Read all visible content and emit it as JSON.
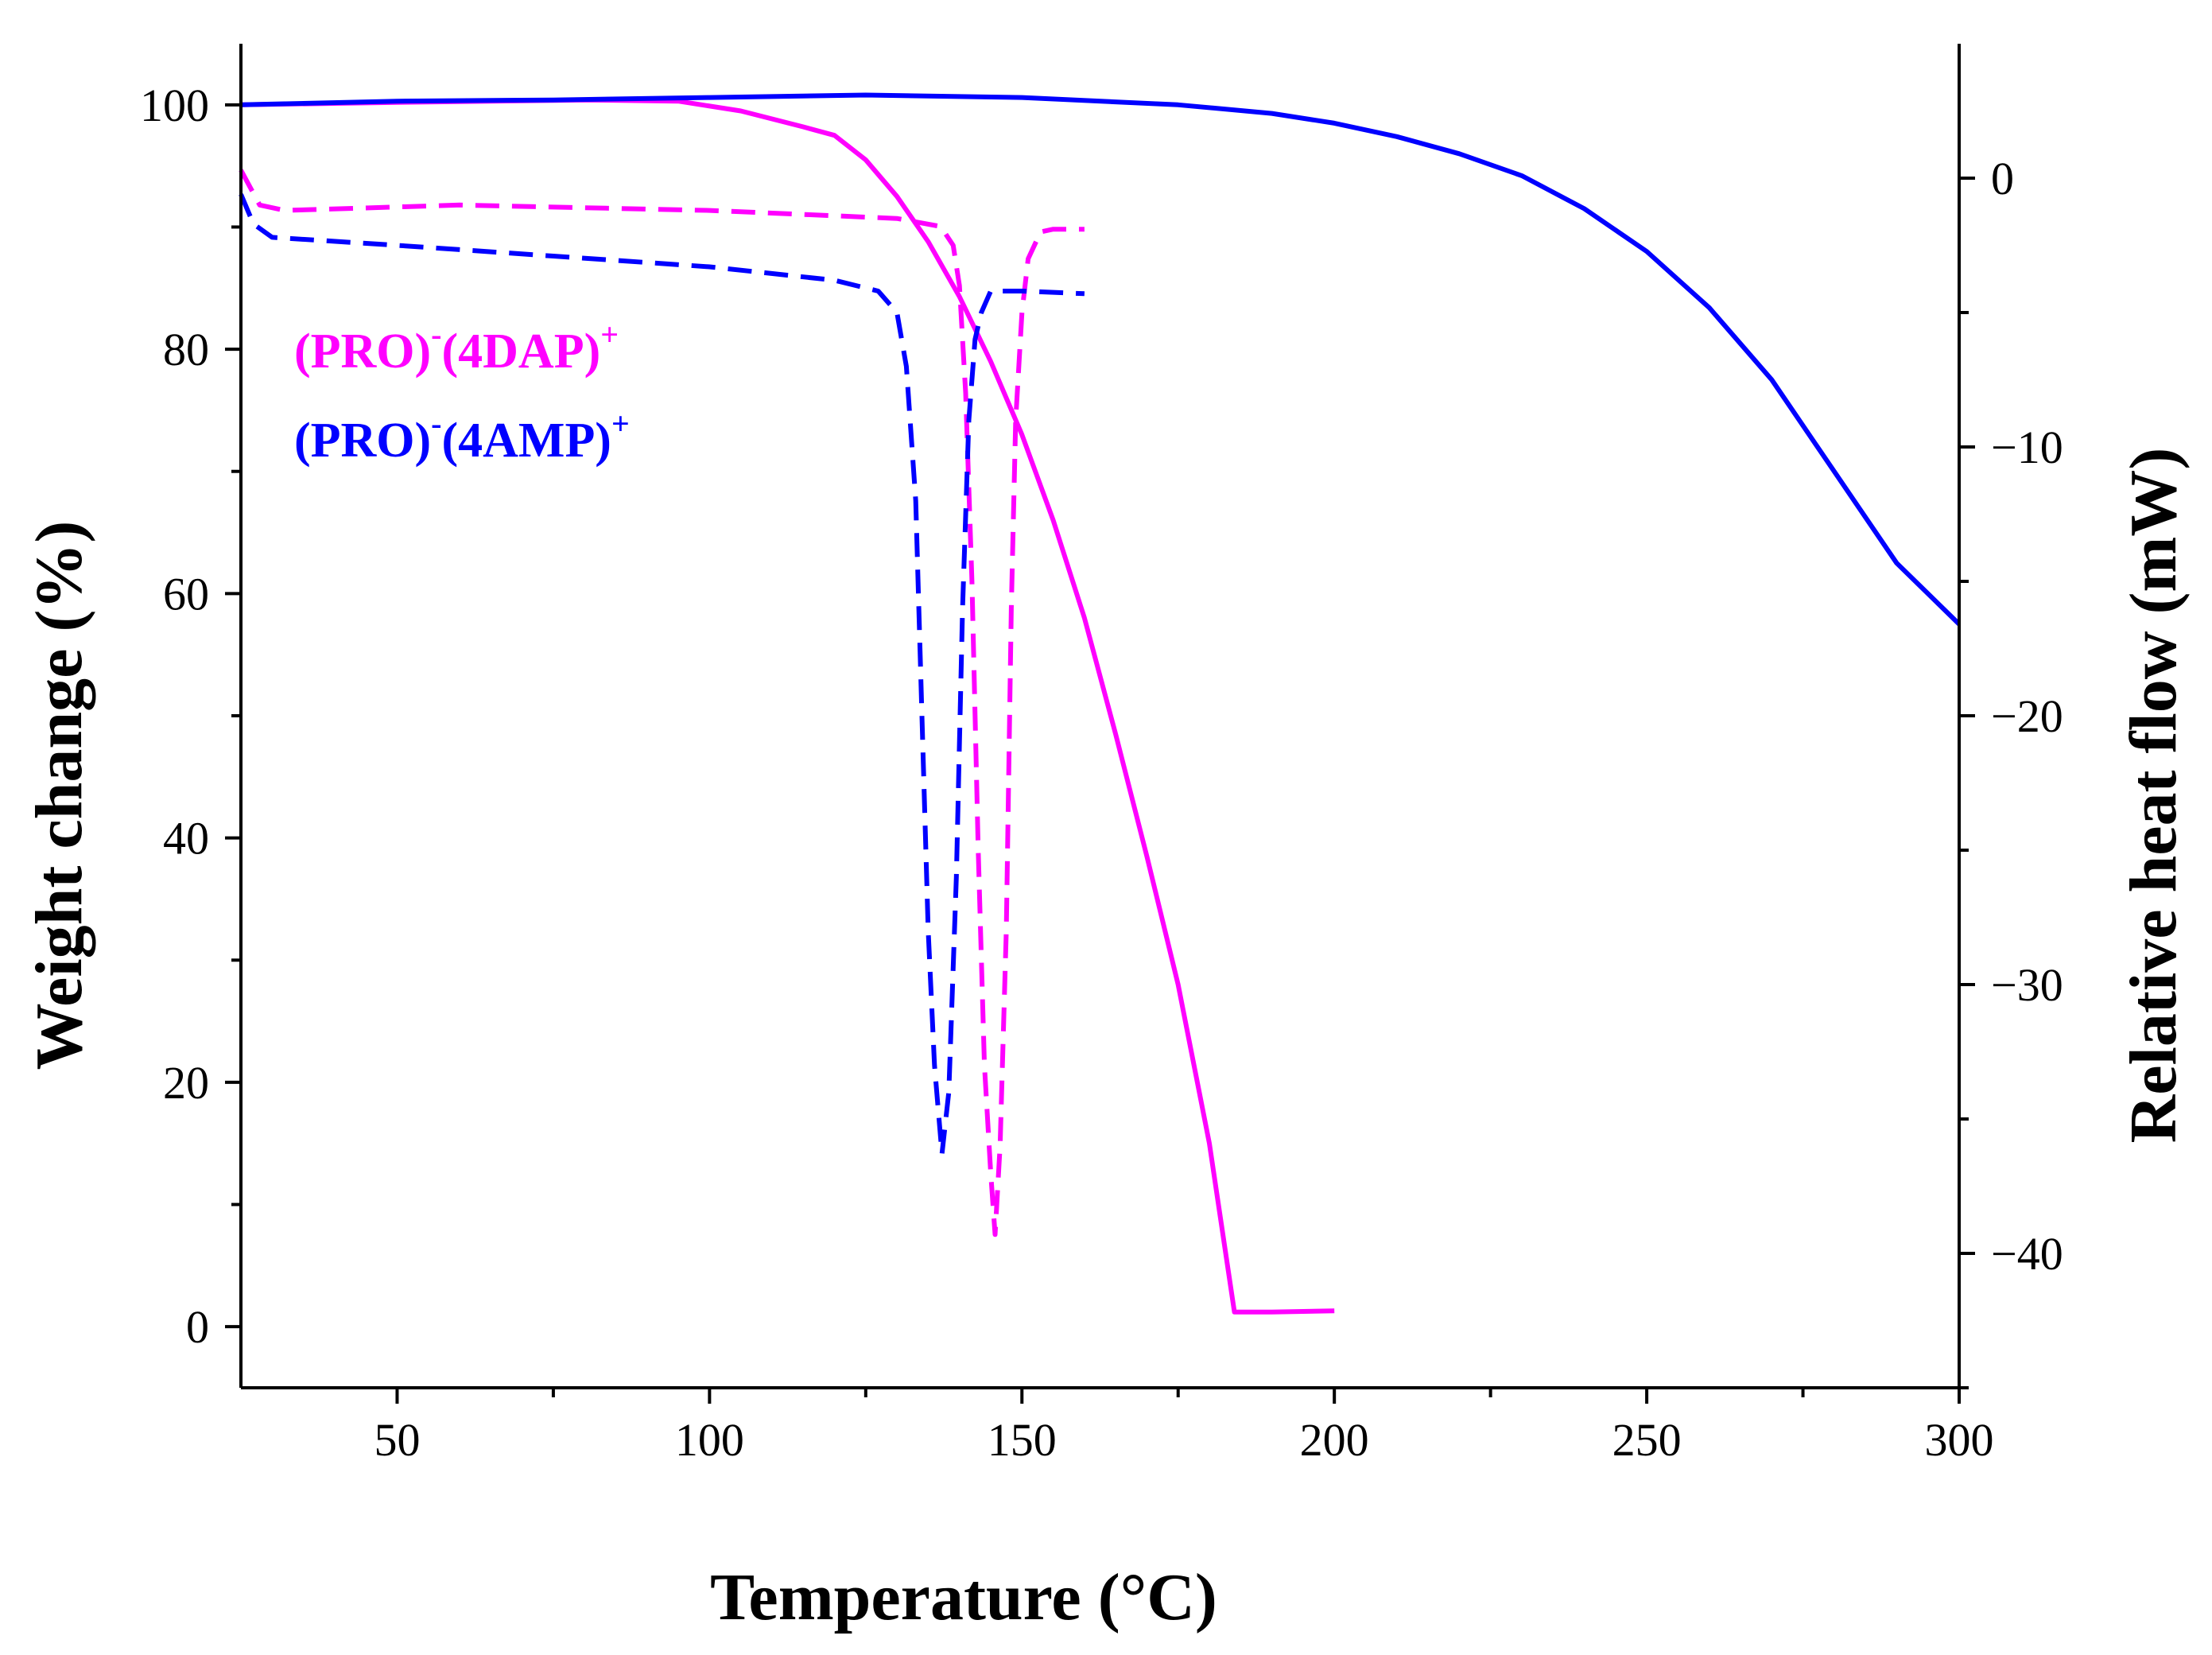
{
  "chart_data": {
    "type": "line",
    "xlabel": "Temperature (°C)",
    "ylabel_left": "Weight change (%)",
    "ylabel_right": "Relative heat flow (mW)",
    "xlim": [
      25,
      300
    ],
    "ylim_left": [
      -5,
      105
    ],
    "ylim_right": [
      -45,
      5
    ],
    "x_ticks": [
      50,
      100,
      150,
      200,
      250,
      300
    ],
    "y_left_ticks": [
      0,
      20,
      40,
      60,
      80,
      100
    ],
    "y_right_ticks": [
      0,
      -10,
      -20,
      -30,
      -40
    ],
    "grid": false,
    "legend": {
      "placement": "left-upper",
      "entries": [
        {
          "base": "(PRO)",
          "sup1": "-",
          "mid": "(4DAP)",
          "sup2": "+",
          "color": "#ff00ff"
        },
        {
          "base": "(PRO)",
          "sup1": "-",
          "mid": "(4AMP)",
          "sup2": "+",
          "color": "#0000ff"
        }
      ]
    },
    "series": [
      {
        "color": "#ff00ff",
        "style": "solid",
        "axis": "left",
        "points": [
          [
            25,
            100
          ],
          [
            50,
            100.2
          ],
          [
            80,
            100.4
          ],
          [
            95,
            100.3
          ],
          [
            105,
            99.5
          ],
          [
            115,
            98.2
          ],
          [
            120,
            97.5
          ],
          [
            125,
            95.5
          ],
          [
            130,
            92.5
          ],
          [
            135,
            88.8
          ],
          [
            140,
            84.3
          ],
          [
            145,
            79
          ],
          [
            150,
            73
          ],
          [
            155,
            66
          ],
          [
            160,
            58
          ],
          [
            165,
            48.5
          ],
          [
            170,
            38.5
          ],
          [
            175,
            28
          ],
          [
            180,
            15
          ],
          [
            184,
            1.2
          ],
          [
            190,
            1.2
          ],
          [
            200,
            1.3
          ]
        ]
      },
      {
        "color": "#0000ff",
        "style": "solid",
        "axis": "left",
        "points": [
          [
            25,
            100
          ],
          [
            50,
            100.3
          ],
          [
            75,
            100.4
          ],
          [
            100,
            100.6
          ],
          [
            125,
            100.8
          ],
          [
            150,
            100.6
          ],
          [
            175,
            100
          ],
          [
            190,
            99.3
          ],
          [
            200,
            98.5
          ],
          [
            210,
            97.4
          ],
          [
            220,
            96
          ],
          [
            230,
            94.2
          ],
          [
            240,
            91.5
          ],
          [
            250,
            88
          ],
          [
            260,
            83.4
          ],
          [
            270,
            77.5
          ],
          [
            280,
            70
          ],
          [
            290,
            62.5
          ],
          [
            300,
            57.5
          ]
        ]
      },
      {
        "color": "#ff00ff",
        "style": "dashed",
        "axis": "right",
        "points": [
          [
            25,
            0.3
          ],
          [
            28,
            -1
          ],
          [
            32,
            -1.2
          ],
          [
            60,
            -1
          ],
          [
            100,
            -1.2
          ],
          [
            130,
            -1.5
          ],
          [
            137,
            -1.8
          ],
          [
            139,
            -2.5
          ],
          [
            140,
            -4
          ],
          [
            141,
            -8
          ],
          [
            142,
            -15
          ],
          [
            143,
            -25
          ],
          [
            144,
            -33
          ],
          [
            145,
            -37
          ],
          [
            145.7,
            -39.3
          ],
          [
            146.5,
            -36
          ],
          [
            147.5,
            -28
          ],
          [
            148.3,
            -16
          ],
          [
            149,
            -9
          ],
          [
            150,
            -5
          ],
          [
            151,
            -3
          ],
          [
            153,
            -2
          ],
          [
            155,
            -1.9
          ],
          [
            160,
            -1.9
          ]
        ]
      },
      {
        "color": "#0000ff",
        "style": "dashed",
        "axis": "right",
        "points": [
          [
            25,
            -0.6
          ],
          [
            27,
            -1.7
          ],
          [
            30,
            -2.2
          ],
          [
            50,
            -2.5
          ],
          [
            75,
            -2.9
          ],
          [
            100,
            -3.3
          ],
          [
            120,
            -3.8
          ],
          [
            127,
            -4.2
          ],
          [
            130,
            -5
          ],
          [
            131.5,
            -7
          ],
          [
            133,
            -12
          ],
          [
            134,
            -20
          ],
          [
            135,
            -28
          ],
          [
            136,
            -33
          ],
          [
            137.2,
            -36.3
          ],
          [
            138.3,
            -34
          ],
          [
            139.5,
            -26
          ],
          [
            140.5,
            -16
          ],
          [
            141.5,
            -9
          ],
          [
            142.5,
            -6
          ],
          [
            143.5,
            -5
          ],
          [
            145,
            -4.2
          ],
          [
            150,
            -4.2
          ],
          [
            160,
            -4.3
          ]
        ]
      }
    ]
  }
}
